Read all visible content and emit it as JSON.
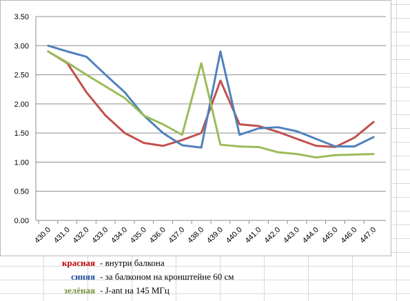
{
  "chart_data": {
    "type": "line",
    "categories": [
      "430.0",
      "431.0",
      "432.0",
      "433.0",
      "434.0",
      "435.0",
      "436.0",
      "437.0",
      "438.0",
      "439.0",
      "440.0",
      "441.0",
      "442.0",
      "443.0",
      "444.0",
      "445.0",
      "446.0",
      "447.0"
    ],
    "ylim": [
      0,
      3.5
    ],
    "yticks": [
      "0.00",
      "0.50",
      "1.00",
      "1.50",
      "2.00",
      "2.50",
      "3.00",
      "3.50"
    ],
    "grid": true,
    "series": [
      {
        "name": "красная",
        "color": "#c0504d",
        "values": [
          2.9,
          2.7,
          2.2,
          1.8,
          1.5,
          1.33,
          1.28,
          1.38,
          1.5,
          2.4,
          1.65,
          1.62,
          1.52,
          1.4,
          1.28,
          1.26,
          1.42,
          1.69
        ]
      },
      {
        "name": "синяя",
        "color": "#4f81bd",
        "values": [
          3.0,
          2.9,
          2.81,
          2.5,
          2.2,
          1.8,
          1.5,
          1.29,
          1.25,
          2.9,
          1.47,
          1.58,
          1.6,
          1.53,
          1.4,
          1.27,
          1.27,
          1.43
        ]
      },
      {
        "name": "зелёная",
        "color": "#9bbb59",
        "values": [
          2.9,
          2.71,
          2.5,
          2.3,
          2.1,
          1.8,
          1.65,
          1.47,
          2.7,
          1.3,
          1.27,
          1.26,
          1.17,
          1.14,
          1.08,
          1.12,
          1.13,
          1.14
        ]
      }
    ]
  },
  "legend": [
    {
      "name": "красная",
      "color": "#c00000",
      "desc": "- внутри балкона"
    },
    {
      "name": "синяя",
      "color": "#1f4e9c",
      "desc": "- за балконом на кронштейне 60 см"
    },
    {
      "name": "зелёная",
      "color": "#76923c",
      "desc": "- J-ant на 145 МГц"
    }
  ]
}
